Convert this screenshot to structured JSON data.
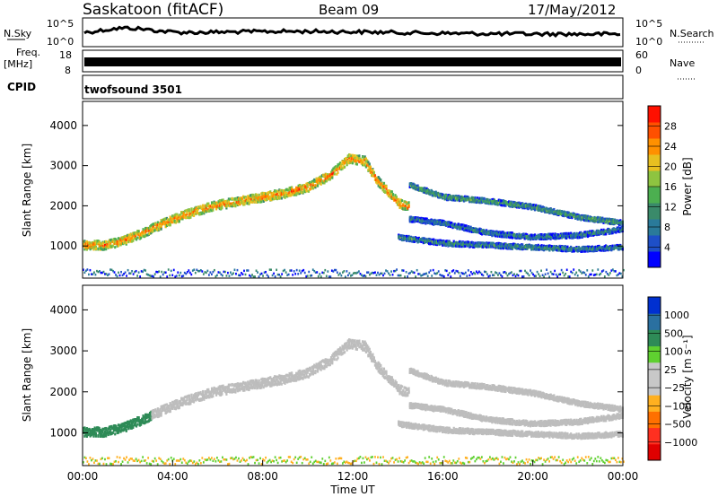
{
  "header": {
    "site": "Saskatoon (fitACF)",
    "beam": "Beam 09",
    "date": "17/May/2012"
  },
  "top_panels": {
    "nsky_label": "N.Sky",
    "nsky_ticks": [
      "10^5",
      "10^0"
    ],
    "nsearch_label": "N.Search",
    "nsearch_ticks": [
      "10^5",
      "10^0"
    ],
    "freq_label": "Freq.",
    "freq_unit": "[MHz]",
    "freq_ticks": [
      "18",
      "8"
    ],
    "nave_label": "Nave",
    "nave_ticks": [
      "60",
      "0"
    ],
    "cpid_label": "CPID",
    "cpid_value": "twofsound 3501"
  },
  "chart_data": [
    {
      "type": "heatmap",
      "name": "power",
      "ylabel": "Slant Range [km]",
      "ylim": [
        200,
        4600
      ],
      "yticks": [
        "1000",
        "2000",
        "3000",
        "4000"
      ],
      "xlim": [
        0,
        24
      ],
      "colorbar_label": "Power [dB]",
      "colorbar_ticks": [
        "28",
        "24",
        "20",
        "16",
        "12",
        "8",
        "4"
      ],
      "colorbar_colors": [
        "#0000ff",
        "#1e4fc8",
        "#2a7a9a",
        "#3a8a6a",
        "#4caf50",
        "#8ec440",
        "#e8c020",
        "#ff9000",
        "#ff5000",
        "#ff1000"
      ],
      "features": [
        {
          "name": "main-trace",
          "points": [
            [
              0,
              1050
            ],
            [
              1,
              1050
            ],
            [
              2,
              1200
            ],
            [
              3,
              1450
            ],
            [
              4,
              1700
            ],
            [
              5,
              1900
            ],
            [
              6,
              2050
            ],
            [
              7,
              2150
            ],
            [
              8,
              2250
            ],
            [
              9,
              2350
            ],
            [
              10,
              2500
            ],
            [
              11,
              2800
            ],
            [
              11.8,
              3200
            ],
            [
              12.5,
              3150
            ],
            [
              13,
              2700
            ],
            [
              13.5,
              2400
            ],
            [
              14,
              2100
            ],
            [
              14.5,
              2000
            ]
          ],
          "intensity": 22
        },
        {
          "name": "late-trace-upper",
          "points": [
            [
              14.5,
              2550
            ],
            [
              16,
              2250
            ],
            [
              18,
              2150
            ],
            [
              20,
              2000
            ],
            [
              22,
              1750
            ],
            [
              24,
              1600
            ]
          ],
          "intensity": 12
        },
        {
          "name": "late-trace-lower",
          "points": [
            [
              14,
              1250
            ],
            [
              16,
              1100
            ],
            [
              18,
              1050
            ],
            [
              20,
              1000
            ],
            [
              22,
              950
            ],
            [
              24,
              1000
            ]
          ],
          "intensity": 10
        },
        {
          "name": "secondary-trace",
          "points": [
            [
              14.5,
              1700
            ],
            [
              16,
              1600
            ],
            [
              18,
              1350
            ],
            [
              20,
              1250
            ],
            [
              22,
              1300
            ],
            [
              24,
              1450
            ]
          ],
          "intensity": 9
        }
      ]
    },
    {
      "type": "heatmap",
      "name": "velocity",
      "ylabel": "Slant Range [km]",
      "ylim": [
        200,
        4600
      ],
      "yticks": [
        "1000",
        "2000",
        "3000",
        "4000"
      ],
      "xlabel": "Time UT",
      "xticks": [
        "00:00",
        "04:00",
        "08:00",
        "12:00",
        "16:00",
        "20:00",
        "00:00"
      ],
      "colorbar_label": "Velocity [m s⁻¹]",
      "colorbar_ticks": [
        "1000",
        "500",
        "100",
        "25",
        "−25",
        "−100",
        "−500",
        "−1000"
      ],
      "colorbar_colors": [
        "#e00000",
        "#ff3020",
        "#ff7000",
        "#ffb020",
        "#c8c8c8",
        "#c8c8c8",
        "#5fd030",
        "#2e8b57",
        "#2a70a0",
        "#0030d0"
      ]
    }
  ],
  "colors": {
    "ground_scatter": "#bdbdbd",
    "background": "#ffffff"
  }
}
